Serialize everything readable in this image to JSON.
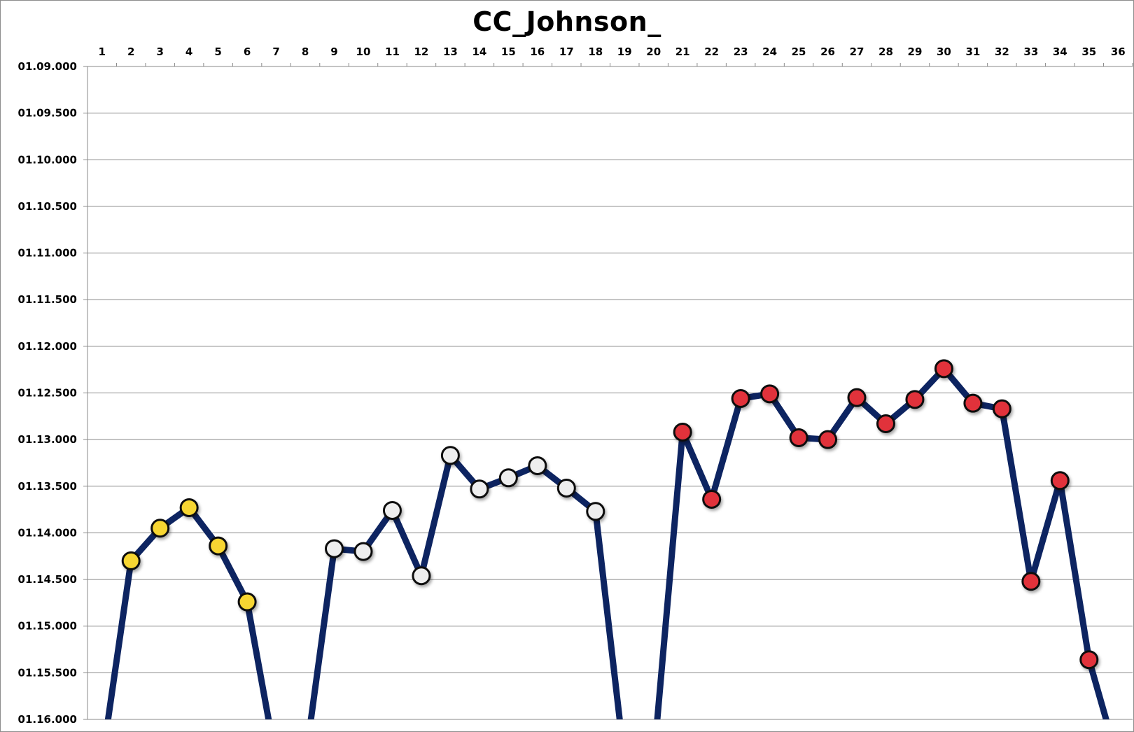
{
  "chart_data": {
    "type": "line",
    "title": "CC_Johnson_",
    "xlabel": "",
    "ylabel": "",
    "categories": [
      "1",
      "2",
      "3",
      "4",
      "5",
      "6",
      "7",
      "8",
      "9",
      "10",
      "11",
      "12",
      "13",
      "14",
      "15",
      "16",
      "17",
      "18",
      "19",
      "20",
      "21",
      "22",
      "23",
      "24",
      "25",
      "26",
      "27",
      "28",
      "29",
      "30",
      "31",
      "32",
      "33",
      "34",
      "35",
      "36"
    ],
    "x_axis_position": "top",
    "y_axis_reversed": true,
    "y_tick_labels": [
      "01.09.000",
      "01.09.500",
      "01.10.000",
      "01.10.500",
      "01.11.000",
      "01.11.500",
      "01.12.000",
      "01.12.500",
      "01.13.000",
      "01.13.500",
      "01.14.000",
      "01.14.500",
      "01.15.000",
      "01.15.500",
      "01.16.000"
    ],
    "ylim": [
      69.0,
      76.0
    ],
    "ylim_note": "Values are lap times in seconds (e.g. 74.3 = 01.14.300).",
    "grid": true,
    "legend": "none",
    "line_color": "#0d2461",
    "marker_colors": {
      "yellow": "#f7d631",
      "white": "#eeeeee",
      "red": "#e1313a"
    },
    "series": [
      {
        "values": [
          null,
          74.3,
          73.95,
          73.73,
          74.14,
          74.74,
          null,
          null,
          74.17,
          74.2,
          73.76,
          74.46,
          73.17,
          73.53,
          73.41,
          73.28,
          73.52,
          73.77,
          null,
          null,
          72.92,
          73.64,
          72.56,
          72.51,
          72.98,
          73.0,
          72.55,
          72.83,
          72.57,
          72.24,
          72.61,
          72.67,
          74.52,
          73.44,
          75.36,
          null
        ],
        "marker_groups": [
          "none",
          "yellow",
          "yellow",
          "yellow",
          "yellow",
          "yellow",
          "none",
          "none",
          "white",
          "white",
          "white",
          "white",
          "white",
          "white",
          "white",
          "white",
          "white",
          "white",
          "none",
          "none",
          "red",
          "red",
          "red",
          "red",
          "red",
          "red",
          "red",
          "red",
          "red",
          "red",
          "red",
          "red",
          "red",
          "red",
          "red",
          "none"
        ]
      }
    ]
  }
}
